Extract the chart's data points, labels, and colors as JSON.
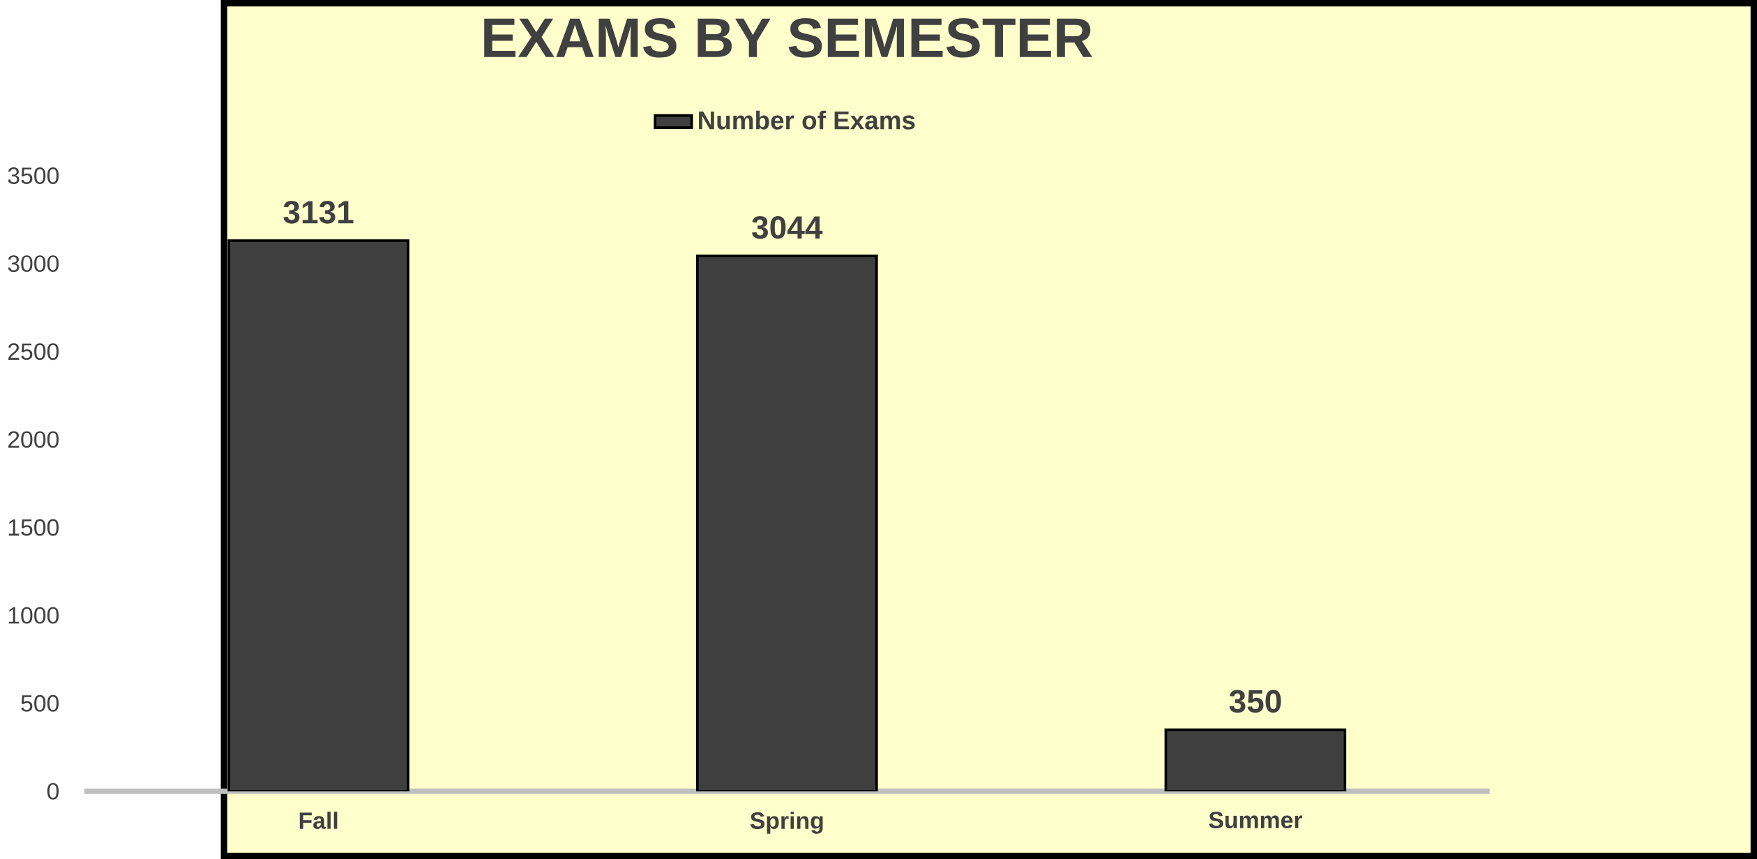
{
  "chart_data": {
    "type": "bar",
    "title": "EXAMS BY SEMESTER",
    "categories": [
      "Fall",
      "Spring",
      "Summer"
    ],
    "series": [
      {
        "name": "Number of Exams",
        "color": "#3f3f3f",
        "values": [
          3131,
          3044,
          350
        ]
      }
    ],
    "ylim": [
      0,
      3500
    ],
    "yticks": [
      0,
      500,
      1000,
      1500,
      2000,
      2500,
      3000,
      3500
    ],
    "data_labels": true,
    "grid": false,
    "legend": "top"
  }
}
